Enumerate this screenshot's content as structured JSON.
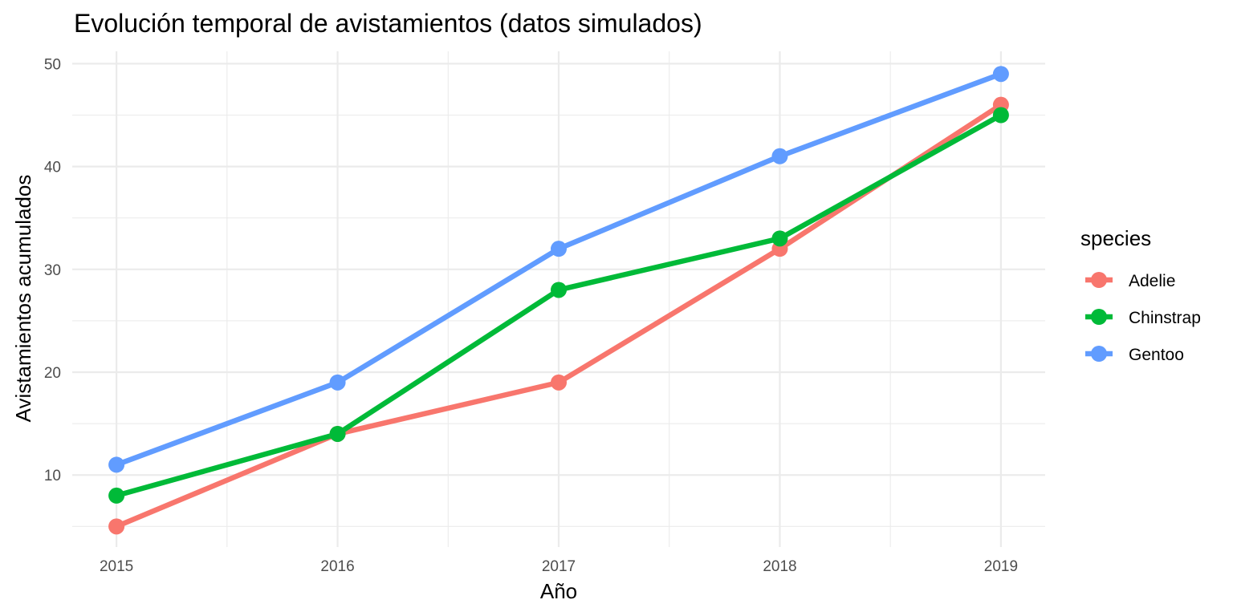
{
  "chart_data": {
    "type": "line",
    "title": "Evolución temporal de avistamientos (datos simulados)",
    "xlabel": "Año",
    "ylabel": "Avistamientos acumulados",
    "x": [
      2015,
      2016,
      2017,
      2018,
      2019
    ],
    "x_tick_labels": [
      "2015",
      "2016",
      "2017",
      "2018",
      "2019"
    ],
    "y_ticks": [
      10,
      20,
      30,
      40,
      50
    ],
    "y_tick_labels": [
      "10",
      "20",
      "30",
      "40",
      "50"
    ],
    "xlim": [
      2014.8,
      2019.2
    ],
    "ylim": [
      3,
      51.2
    ],
    "grid": true,
    "legend": {
      "title": "species",
      "position": "right"
    },
    "series": [
      {
        "name": "Adelie",
        "color": "#F8766D",
        "values": [
          5,
          14,
          19,
          32,
          46
        ]
      },
      {
        "name": "Chinstrap",
        "color": "#00BA38",
        "values": [
          8,
          14,
          28,
          33,
          45
        ]
      },
      {
        "name": "Gentoo",
        "color": "#619CFF",
        "values": [
          11,
          19,
          32,
          41,
          49
        ]
      }
    ]
  }
}
